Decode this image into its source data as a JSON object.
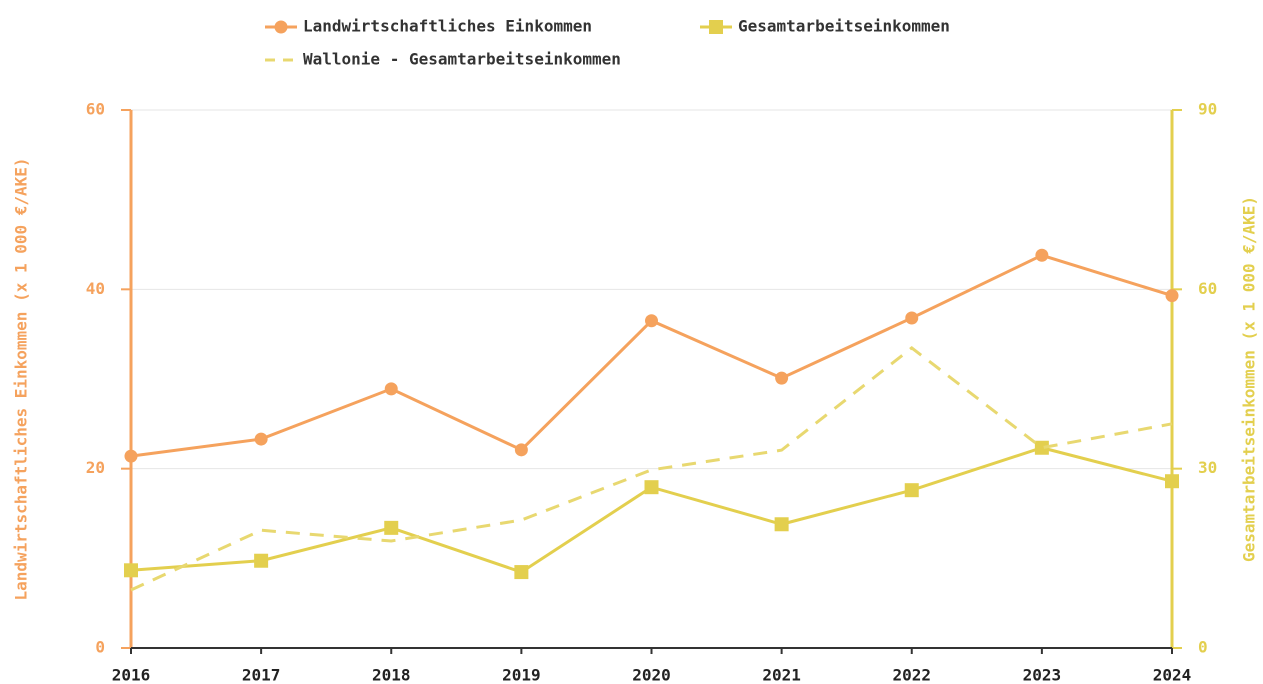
{
  "chart_data": {
    "type": "line",
    "x": [
      "2016",
      "2017",
      "2018",
      "2019",
      "2020",
      "2021",
      "2022",
      "2023",
      "2024"
    ],
    "y_label": "Landwirtschaftliches Einkommen (x 1 000 €/AKE)",
    "y2_label": "Gesamtarbeitseinkommen (x 1 000 €/AKE)",
    "ylim": [
      0,
      60
    ],
    "yticks": [
      0,
      20,
      40,
      60
    ],
    "y2lim": [
      0,
      90
    ],
    "y2ticks": [
      0,
      30,
      60,
      90
    ],
    "grid": true,
    "legend": "top",
    "y_color": "#f5a25d",
    "y2_color": "#e3cf4e",
    "series": [
      {
        "name": "Landwirtschaftliches Einkommen",
        "color": "#f5a25d",
        "marker": "circle",
        "line_style": "solid",
        "values": [
          21.4,
          23.3,
          28.9,
          22.1,
          36.5,
          30.1,
          36.8,
          43.8,
          39.3
        ]
      },
      {
        "name": "Gesamtarbeitseinkommen",
        "color": "#e3cf4e",
        "marker": "square",
        "line_style": "solid",
        "axis": "y2",
        "values": [
          13.0,
          14.6,
          20.1,
          12.7,
          26.9,
          20.7,
          26.4,
          33.5,
          27.9
        ]
      },
      {
        "name": "Wallonie - Gesamtarbeitseinkommen",
        "color": "#e8d870",
        "marker": "none",
        "line_style": "dashed",
        "axis": "y2",
        "values": [
          9.7,
          19.7,
          17.9,
          21.4,
          29.8,
          33.1,
          50.2,
          33.5,
          37.5
        ]
      }
    ]
  }
}
